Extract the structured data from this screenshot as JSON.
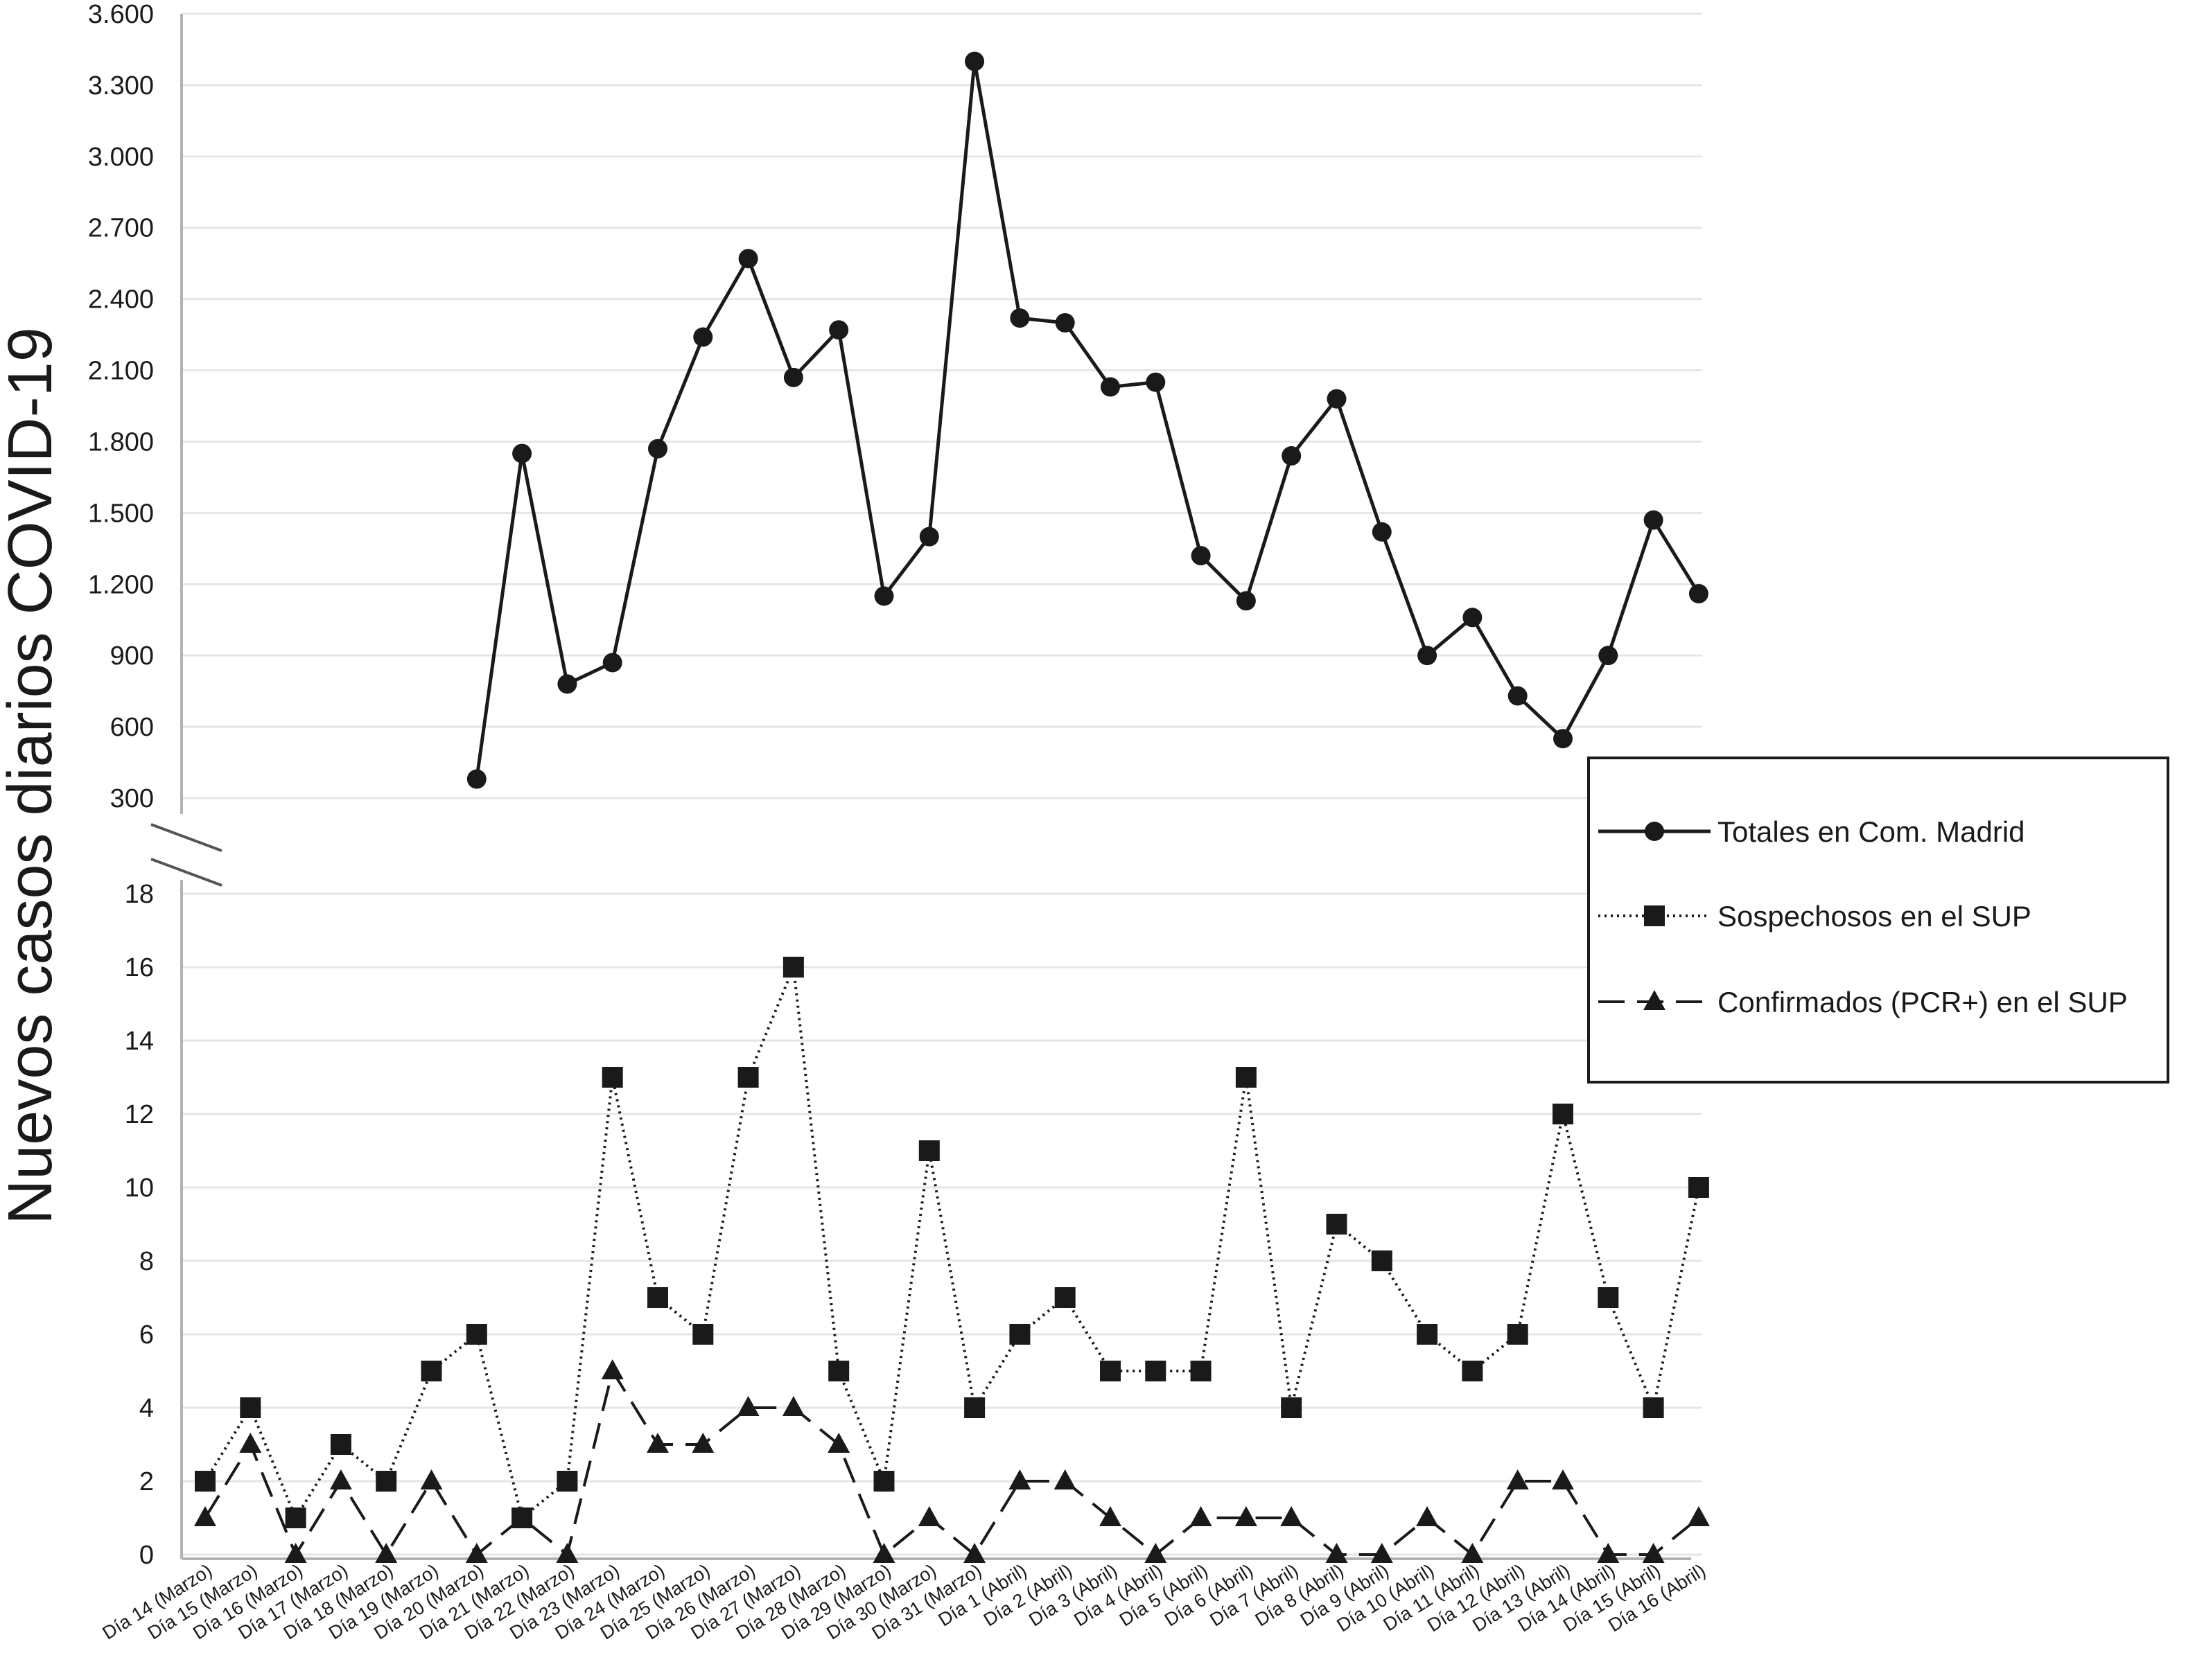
{
  "chart_data": {
    "type": "line",
    "ylabel": "Nuevos casos diarios COVID-19",
    "categories": [
      "Día 14 (Marzo)",
      "Día 15 (Marzo)",
      "Día 16 (Marzo)",
      "Día 17 (Marzo)",
      "Día 18 (Marzo)",
      "Día 19 (Marzo)",
      "Día 20 (Marzo)",
      "Día 21 (Marzo)",
      "Día 22 (Marzo)",
      "Día 23 (Marzo)",
      "Día 24 (Marzo)",
      "Día 25 (Marzo)",
      "Día 26 (Marzo)",
      "Día 27 (Marzo)",
      "Día 28 (Marzo)",
      "Día 29 (Marzo)",
      "Día 30 (Marzo)",
      "Día 31 (Marzo)",
      "Día 1 (Abril)",
      "Día 2 (Abril)",
      "Día 3 (Abril)",
      "Día 4 (Abril)",
      "Día 5 (Abril)",
      "Día 6 (Abril)",
      "Día 7 (Abril)",
      "Día 8 (Abril)",
      "Día 9 (Abril)",
      "Día 10 (Abril)",
      "Día 11 (Abril)",
      "Día 12 (Abril)",
      "Día 13 (Abril)",
      "Día 14 (Abril)",
      "Día 15 (Abril)",
      "Día 16 (Abril)"
    ],
    "axes": {
      "upper": {
        "ylim": [
          300,
          3600
        ],
        "ticks": [
          "300",
          "600",
          "900",
          "1.200",
          "1.500",
          "1.800",
          "2.100",
          "2.400",
          "2.700",
          "3.000",
          "3.300",
          "3.600"
        ],
        "tick_values": [
          300,
          600,
          900,
          1200,
          1500,
          1800,
          2100,
          2400,
          2700,
          3000,
          3300,
          3600
        ]
      },
      "lower": {
        "ylim": [
          0,
          18
        ],
        "ticks": [
          "0",
          "2",
          "4",
          "6",
          "8",
          "10",
          "12",
          "14",
          "16",
          "18"
        ],
        "tick_values": [
          0,
          2,
          4,
          6,
          8,
          10,
          12,
          14,
          16,
          18
        ]
      },
      "broken_axis": true,
      "grid": "horizontal"
    },
    "series": [
      {
        "name": "Totales en Com. Madrid",
        "axis": "upper",
        "style": "solid",
        "marker": "circle",
        "values": [
          null,
          null,
          null,
          null,
          null,
          null,
          380,
          1750,
          780,
          870,
          1770,
          2240,
          2570,
          2070,
          2270,
          1150,
          1400,
          3400,
          2320,
          2300,
          2030,
          2050,
          1320,
          1130,
          1740,
          1980,
          1420,
          900,
          1060,
          730,
          550,
          900,
          1470,
          1160
        ]
      },
      {
        "name": "Sospechosos en el SUP",
        "axis": "lower",
        "style": "dotted",
        "marker": "square",
        "values": [
          2,
          4,
          1,
          3,
          2,
          5,
          6,
          1,
          2,
          13,
          7,
          6,
          13,
          16,
          5,
          2,
          11,
          4,
          6,
          7,
          5,
          5,
          5,
          13,
          4,
          9,
          8,
          6,
          5,
          6,
          12,
          7,
          4,
          10
        ]
      },
      {
        "name": "Confirmados (PCR+) en el SUP",
        "axis": "lower",
        "style": "dashed",
        "marker": "triangle",
        "values": [
          1,
          3,
          0,
          2,
          0,
          2,
          0,
          1,
          0,
          5,
          3,
          3,
          4,
          4,
          3,
          0,
          1,
          0,
          2,
          2,
          1,
          0,
          1,
          1,
          1,
          0,
          0,
          1,
          0,
          2,
          2,
          0,
          0,
          1
        ]
      }
    ],
    "legend": {
      "placement": "right"
    },
    "colors": {
      "line": "#1a1a1a",
      "grid": "#e6e6e6",
      "axis": "#b3b3b3"
    }
  }
}
